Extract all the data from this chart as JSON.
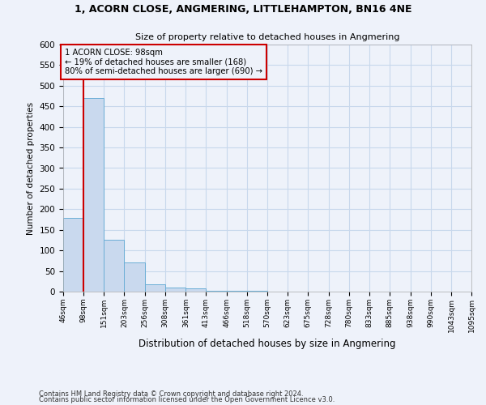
{
  "title1": "1, ACORN CLOSE, ANGMERING, LITTLEHAMPTON, BN16 4NE",
  "title2": "Size of property relative to detached houses in Angmering",
  "xlabel": "Distribution of detached houses by size in Angmering",
  "ylabel": "Number of detached properties",
  "bar_edges": [
    46,
    98,
    151,
    203,
    256,
    308,
    361,
    413,
    466,
    518,
    570,
    623,
    675,
    728,
    780,
    833,
    885,
    938,
    990,
    1043,
    1095
  ],
  "bar_heights": [
    180,
    470,
    125,
    70,
    18,
    10,
    7,
    2,
    1,
    1,
    0,
    0,
    0,
    0,
    0,
    0,
    0,
    0,
    0,
    0
  ],
  "bar_color": "#c9d9ee",
  "bar_edgecolor": "#6baed6",
  "grid_color": "#c8d8ec",
  "property_line_x": 98,
  "property_line_color": "#cc0000",
  "annotation_text": "1 ACORN CLOSE: 98sqm\n← 19% of detached houses are smaller (168)\n80% of semi-detached houses are larger (690) →",
  "annotation_box_color": "#cc0000",
  "ylim": [
    0,
    600
  ],
  "yticks": [
    0,
    50,
    100,
    150,
    200,
    250,
    300,
    350,
    400,
    450,
    500,
    550,
    600
  ],
  "footer1": "Contains HM Land Registry data © Crown copyright and database right 2024.",
  "footer2": "Contains public sector information licensed under the Open Government Licence v3.0.",
  "bg_color": "#eef2fa"
}
